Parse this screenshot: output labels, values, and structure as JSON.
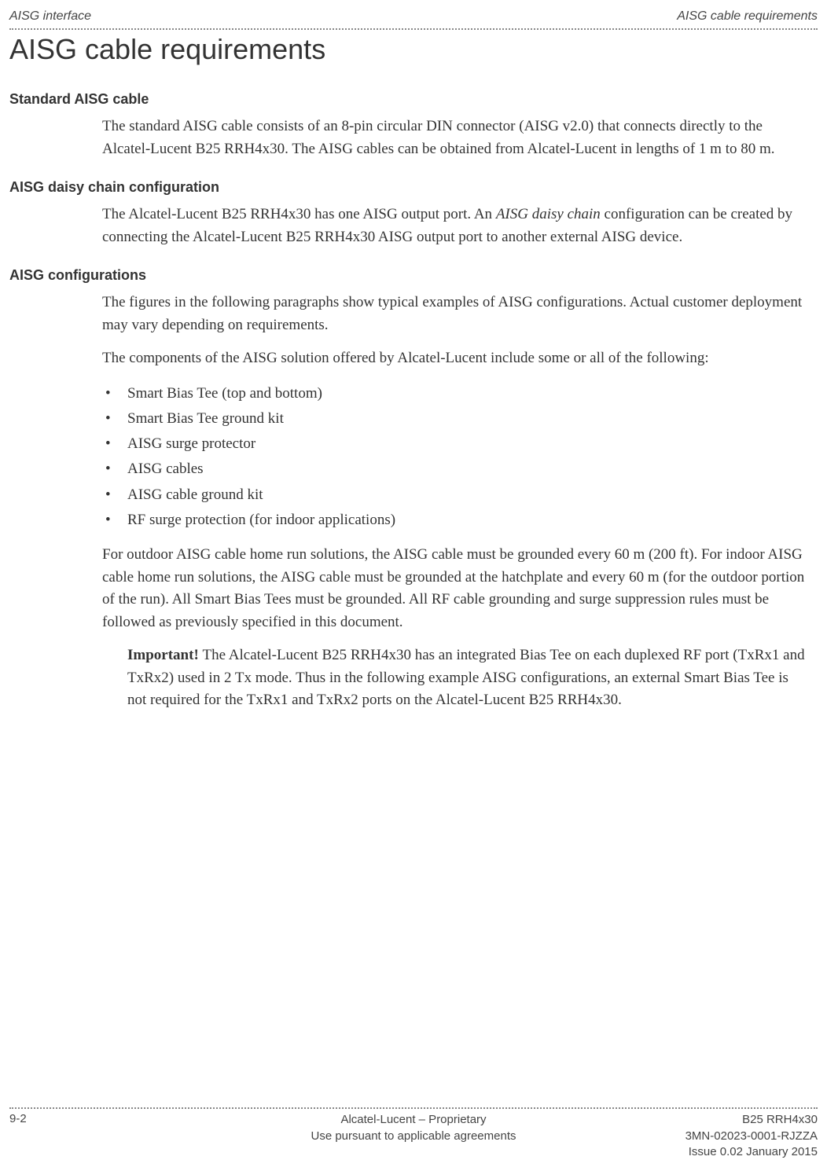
{
  "header": {
    "left": "AISG interface",
    "right": "AISG cable requirements"
  },
  "title": "AISG cable requirements",
  "sections": {
    "standard": {
      "heading": "Standard AISG cable",
      "para1": "The standard AISG cable consists of an 8-pin circular DIN connector (AISG v2.0) that connects directly to the Alcatel-Lucent B25 RRH4x30. The AISG cables can be obtained from Alcatel-Lucent in lengths of 1 m to 80 m."
    },
    "daisy": {
      "heading": "AISG daisy chain configuration",
      "para_pre": "The Alcatel-Lucent B25 RRH4x30 has one AISG output port. An ",
      "para_italic": "AISG daisy chain",
      "para_post": " configuration can be created by connecting the Alcatel-Lucent B25 RRH4x30 AISG output port to another external AISG device."
    },
    "configs": {
      "heading": "AISG configurations",
      "para1": "The figures in the following paragraphs show typical examples of AISG configurations. Actual customer deployment may vary depending on requirements.",
      "para2": "The components of the AISG solution offered by Alcatel-Lucent include some or all of the following:",
      "bullets": [
        "Smart Bias Tee (top and bottom)",
        "Smart Bias Tee ground kit",
        "AISG surge protector",
        "AISG cables",
        "AISG cable ground kit",
        "RF surge protection (for indoor applications)"
      ],
      "para3": "For outdoor AISG cable home run solutions, the AISG cable must be grounded every 60 m (200 ft). For indoor AISG cable home run solutions, the AISG cable must be grounded at the hatchplate and every 60 m (for the outdoor portion of the run). All Smart Bias Tees must be grounded. All RF cable grounding and surge suppression rules must be followed as previously specified in this document.",
      "important_label": "Important! ",
      "important_text": "The Alcatel-Lucent B25 RRH4x30 has an integrated Bias Tee on each duplexed RF port (TxRx1 and TxRx2) used in 2 Tx mode. Thus in the following example AISG configurations, an external Smart Bias Tee is not required for the TxRx1 and TxRx2 ports on the Alcatel-Lucent B25 RRH4x30."
    }
  },
  "footer": {
    "page_num": "9-2",
    "center1": "Alcatel-Lucent – Proprietary",
    "center2": "Use pursuant to applicable agreements",
    "right1": "B25 RRH4x30",
    "right2": "3MN-02023-0001-RJZZA",
    "right3": "Issue 0.02   January 2015"
  }
}
